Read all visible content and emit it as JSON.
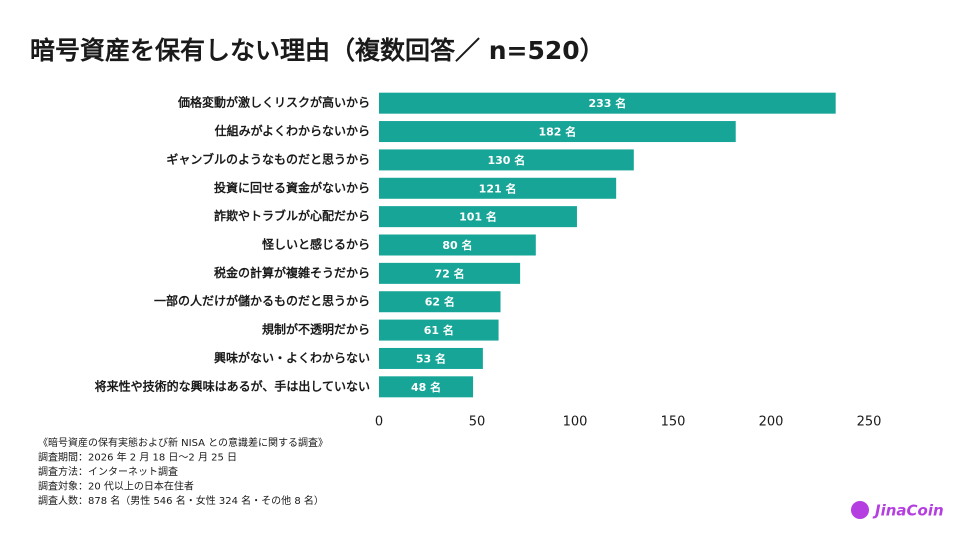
{
  "chart_data": {
    "type": "bar",
    "orientation": "horizontal",
    "title": "暗号資産を保有しない理由（複数回答／ n=520）",
    "categories": [
      "価格変動が激しくリスクが高いから",
      "仕組みがよくわからないから",
      "ギャンブルのようなものだと思うから",
      "投資に回せる資金がないから",
      "詐欺やトラブルが心配だから",
      "怪しいと感じるから",
      "税金の計算が複雑そうだから",
      "一部の人だけが儲かるものだと思うから",
      "規制が不透明だから",
      "興味がない・よくわからない",
      "将来性や技術的な興味はあるが、手は出していない"
    ],
    "values": [
      233,
      182,
      130,
      121,
      101,
      80,
      72,
      62,
      61,
      53,
      48
    ],
    "value_labels": [
      "233 名",
      "182 名",
      "130 名",
      "121 名",
      "101 名",
      "80 名",
      "72 名",
      "62 名",
      "61 名",
      "53 名",
      "48 名"
    ],
    "color": "#17a597",
    "xlim": [
      0,
      250
    ],
    "xticks": [
      0,
      50,
      100,
      150,
      200,
      250
    ],
    "grid": false,
    "notes": [
      "《暗号資産の保有実態および新 NISA との意識差に関する調査》",
      "調査期間：2026 年 2 月 18 日〜2 月 25 日",
      "調査方法：インターネット調査",
      "調査対象：20 代以上の日本在住者",
      "調査人数：878 名（男性 546 名・女性 324 名・その他 8 名）"
    ],
    "brand": "JinaCoin"
  }
}
